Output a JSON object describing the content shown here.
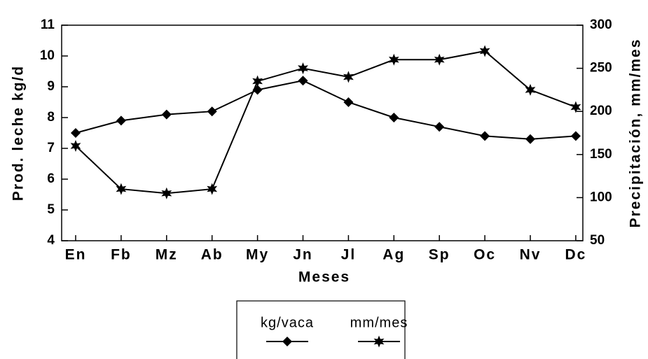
{
  "chart_data": {
    "type": "line",
    "categories": [
      "En",
      "Fb",
      "Mz",
      "Ab",
      "My",
      "Jn",
      "Jl",
      "Ag",
      "Sp",
      "Oc",
      "Nv",
      "Dc"
    ],
    "series": [
      {
        "name": "kg/vaca",
        "color": "#000000",
        "marker": "diamond",
        "values": [
          7.5,
          7.9,
          8.1,
          8.2,
          8.9,
          9.2,
          8.5,
          8.0,
          7.7,
          7.4,
          7.3,
          7.4
        ]
      },
      {
        "name": "mm/mes",
        "color": "#000000",
        "marker": "star",
        "axis": "y2",
        "values": [
          160,
          110,
          105,
          110,
          235,
          250,
          240,
          260,
          260,
          270,
          225,
          205
        ]
      }
    ],
    "xlabel": "Meses",
    "ylabel": "Prod. leche kg/d",
    "y2label": "Precipitación, mm/mes",
    "ylim": [
      4,
      11
    ],
    "yticks": [
      4,
      5,
      6,
      7,
      8,
      9,
      10,
      11
    ],
    "y2lim": [
      50,
      300
    ],
    "y2ticks": [
      50,
      100,
      150,
      200,
      250,
      300
    ],
    "legend": "bottom"
  }
}
